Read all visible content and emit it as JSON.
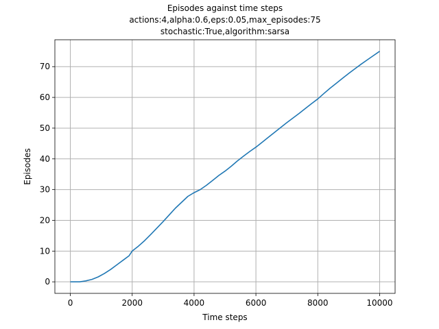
{
  "chart_data": {
    "type": "line",
    "title_lines": [
      "Episodes against time steps",
      "actions:4,alpha:0.6,eps:0.05,max_episodes:75",
      "stochastic:True,algorithm:sarsa"
    ],
    "xlabel": "Time steps",
    "ylabel": "Episodes",
    "xlim": [
      -500,
      10500
    ],
    "ylim": [
      -3.75,
      78.75
    ],
    "x_ticks": [
      0,
      2000,
      4000,
      6000,
      8000,
      10000
    ],
    "y_ticks": [
      0,
      10,
      20,
      30,
      40,
      50,
      60,
      70
    ],
    "grid": true,
    "colors": {
      "line": "#1f77b4",
      "grid": "#b0b0b0"
    },
    "series": [
      {
        "x": [
          0,
          300,
          500,
          700,
          900,
          1100,
          1300,
          1500,
          1700,
          1900,
          2000,
          2200,
          2400,
          2600,
          2800,
          3000,
          3200,
          3400,
          3600,
          3800,
          4000,
          4200,
          4400,
          4600,
          4800,
          5000,
          5200,
          5400,
          5600,
          5800,
          6000,
          6200,
          6400,
          6600,
          6800,
          7000,
          7200,
          7400,
          7600,
          7800,
          8000,
          8200,
          8400,
          8600,
          8800,
          9000,
          9200,
          9400,
          9600,
          9800,
          10000
        ],
        "y": [
          0,
          0,
          0.3,
          0.8,
          1.6,
          2.7,
          4.0,
          5.5,
          7.0,
          8.5,
          10.0,
          11.6,
          13.4,
          15.4,
          17.5,
          19.6,
          21.8,
          24.0,
          25.9,
          27.8,
          29.0,
          30.0,
          31.4,
          33.0,
          34.6,
          36.0,
          37.6,
          39.3,
          40.9,
          42.4,
          43.8,
          45.4,
          47.0,
          48.6,
          50.2,
          51.8,
          53.3,
          54.8,
          56.4,
          58.0,
          59.5,
          61.3,
          63.0,
          64.6,
          66.2,
          67.8,
          69.3,
          70.8,
          72.2,
          73.6,
          75.0
        ]
      }
    ]
  }
}
